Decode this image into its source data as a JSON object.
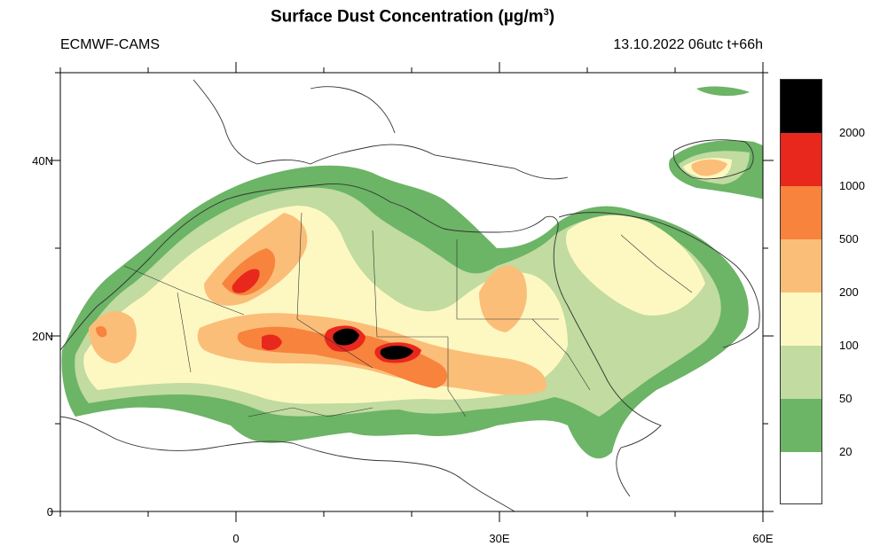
{
  "header": {
    "title_text": "Surface Dust Concentration (",
    "title_unit_mu": "µ",
    "title_unit_rest": "g/m",
    "title_unit_exp": "3",
    "title_close": ")",
    "source": "ECMWF-CAMS",
    "valid_time": "13.10.2022 06utc t+66h"
  },
  "axes": {
    "lat_ticks": [
      "40N",
      "20N",
      "0"
    ],
    "lon_ticks": [
      "0",
      "30E",
      "60E"
    ],
    "lat_range": [
      0,
      50
    ],
    "lon_range": [
      -20,
      60
    ]
  },
  "legend": {
    "levels": [
      "2000",
      "1000",
      "500",
      "200",
      "100",
      "50",
      "20"
    ],
    "colors": [
      "#000000",
      "#e8281c",
      "#f7833d",
      "#fbbe79",
      "#fdf8c2",
      "#c1dba0",
      "#6cb466",
      "#ffffff"
    ]
  },
  "colors": {
    "frame": "#000000",
    "border": "#333333"
  }
}
